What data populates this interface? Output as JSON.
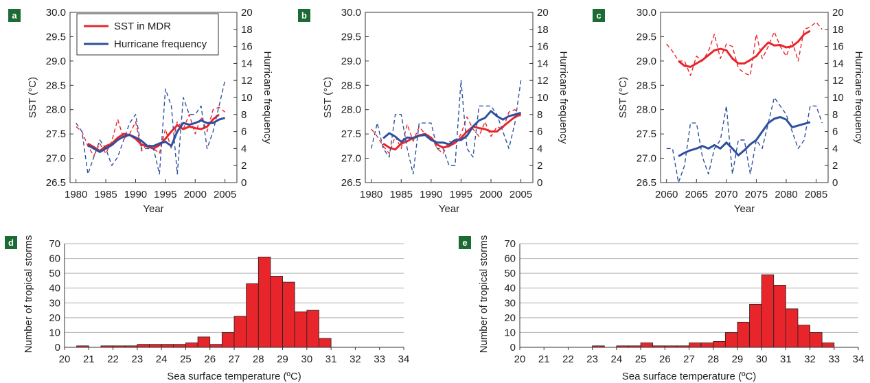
{
  "colors": {
    "sst": "#e8252b",
    "hurricane": "#2e4f9e",
    "bar": "#e8252b",
    "panel_label_bg": "#1c6b35",
    "grid": "#b0b0b0"
  },
  "legend": {
    "sst": "SST in MDR",
    "hurricane": "Hurricane frequency"
  },
  "chart_data": [
    {
      "panel": "a",
      "type": "line",
      "xlabel": "Year",
      "ylabel": "SST (°C)",
      "y2label": "Hurricane frequency",
      "xlim": [
        1979,
        2007
      ],
      "ylim": [
        26.5,
        30.0
      ],
      "y2lim": [
        0,
        20
      ],
      "xticks": [
        1980,
        1985,
        1990,
        1995,
        2000,
        2005
      ],
      "yticks": [
        "26.5",
        "27.0",
        "27.5",
        "28.0",
        "28.5",
        "29.0",
        "29.5",
        "30.0"
      ],
      "y2ticks": [
        "0",
        "2",
        "4",
        "6",
        "8",
        "10",
        "12",
        "14",
        "16",
        "18",
        "20"
      ],
      "series": [
        {
          "name": "SST in MDR",
          "style": "raw",
          "axis": "left",
          "x": [
            1980,
            1981,
            1982,
            1983,
            1984,
            1985,
            1986,
            1987,
            1988,
            1989,
            1990,
            1991,
            1992,
            1993,
            1994,
            1995,
            1996,
            1997,
            1998,
            1999,
            2000,
            2001,
            2002,
            2003,
            2004,
            2005
          ],
          "y": [
            27.65,
            27.55,
            27.25,
            27.05,
            27.3,
            27.1,
            27.35,
            27.8,
            27.4,
            27.5,
            27.75,
            27.15,
            27.3,
            27.2,
            27.1,
            27.6,
            27.2,
            27.75,
            27.6,
            27.9,
            27.5,
            27.85,
            27.55,
            28.0,
            28.05,
            27.95
          ]
        },
        {
          "name": "SST in MDR",
          "style": "smooth",
          "axis": "left",
          "x": [
            1982,
            1983,
            1984,
            1985,
            1986,
            1987,
            1988,
            1989,
            1990,
            1991,
            1992,
            1993,
            1994,
            1995,
            1996,
            1997,
            1998,
            1999,
            2000,
            2001,
            2002,
            2003,
            2004
          ],
          "y": [
            27.3,
            27.23,
            27.15,
            27.25,
            27.3,
            27.42,
            27.5,
            27.48,
            27.4,
            27.28,
            27.24,
            27.2,
            27.27,
            27.4,
            27.55,
            27.68,
            27.6,
            27.65,
            27.62,
            27.6,
            27.65,
            27.8,
            27.9
          ]
        },
        {
          "name": "Hurricane frequency",
          "style": "raw",
          "axis": "right",
          "x": [
            1980,
            1981,
            1982,
            1983,
            1984,
            1985,
            1986,
            1987,
            1988,
            1989,
            1990,
            1991,
            1992,
            1993,
            1994,
            1995,
            1996,
            1997,
            1998,
            1999,
            2000,
            2001,
            2002,
            2003,
            2004,
            2005
          ],
          "y": [
            7,
            6,
            1,
            3,
            5,
            4,
            2,
            3,
            5,
            7,
            8,
            4,
            4,
            4,
            1,
            11,
            9,
            1,
            10,
            8,
            8,
            9,
            4,
            6,
            9,
            12
          ]
        },
        {
          "name": "Hurricane frequency",
          "style": "smooth",
          "axis": "right",
          "x": [
            1982,
            1983,
            1984,
            1985,
            1986,
            1987,
            1988,
            1989,
            1990,
            1991,
            1992,
            1993,
            1994,
            1995,
            1996,
            1997,
            1998,
            1999,
            2000,
            2001,
            2002,
            2003,
            2004,
            2005
          ],
          "y": [
            4.4,
            4,
            3.6,
            4,
            4.4,
            5,
            5.4,
            5.6,
            5.3,
            4.9,
            4.3,
            4.3,
            4.6,
            4.8,
            4.3,
            6,
            7,
            6.8,
            7,
            7.3,
            7,
            7,
            7.4,
            7.6
          ]
        }
      ]
    },
    {
      "panel": "b",
      "type": "line",
      "xlabel": "Year",
      "ylabel": "SST (°C)",
      "y2label": "Hurricane frequency",
      "xlim": [
        1979,
        2007
      ],
      "ylim": [
        26.5,
        30.0
      ],
      "y2lim": [
        0,
        20
      ],
      "xticks": [
        1980,
        1985,
        1990,
        1995,
        2000,
        2005
      ],
      "yticks": [
        "26.5",
        "27.0",
        "27.5",
        "28.0",
        "28.5",
        "29.0",
        "29.5",
        "30.0"
      ],
      "y2ticks": [
        "0",
        "2",
        "4",
        "6",
        "8",
        "10",
        "12",
        "14",
        "16",
        "18",
        "20"
      ],
      "series": [
        {
          "name": "SST in MDR",
          "style": "raw",
          "axis": "left",
          "x": [
            1980,
            1981,
            1982,
            1983,
            1984,
            1985,
            1986,
            1987,
            1988,
            1989,
            1990,
            1991,
            1992,
            1993,
            1994,
            1995,
            1996,
            1997,
            1998,
            1999,
            2000,
            2001,
            2002,
            2003,
            2004,
            2005
          ],
          "y": [
            27.6,
            27.45,
            27.25,
            27.1,
            27.45,
            27.2,
            27.7,
            27.35,
            27.65,
            27.5,
            27.45,
            27.2,
            27.1,
            27.35,
            27.3,
            27.5,
            27.85,
            27.6,
            27.45,
            27.75,
            27.45,
            27.65,
            27.6,
            27.95,
            28.0,
            27.85
          ]
        },
        {
          "name": "SST in MDR",
          "style": "smooth",
          "axis": "left",
          "x": [
            1982,
            1983,
            1984,
            1985,
            1986,
            1987,
            1988,
            1989,
            1990,
            1991,
            1992,
            1993,
            1994,
            1995,
            1996,
            1997,
            1998,
            1999,
            2000,
            2001,
            2002,
            2003,
            2004,
            2005
          ],
          "y": [
            27.3,
            27.22,
            27.18,
            27.3,
            27.35,
            27.42,
            27.47,
            27.5,
            27.42,
            27.28,
            27.22,
            27.25,
            27.32,
            27.42,
            27.55,
            27.65,
            27.62,
            27.6,
            27.55,
            27.55,
            27.65,
            27.75,
            27.85,
            27.9
          ]
        },
        {
          "name": "Hurricane frequency",
          "style": "raw",
          "axis": "right",
          "x": [
            1980,
            1981,
            1982,
            1983,
            1984,
            1985,
            1986,
            1987,
            1988,
            1989,
            1990,
            1991,
            1992,
            1993,
            1994,
            1995,
            1996,
            1997,
            1998,
            1999,
            2000,
            2001,
            2002,
            2003,
            2004,
            2005
          ],
          "y": [
            4,
            7,
            4,
            3,
            8,
            8,
            4,
            1,
            7,
            7,
            7,
            4,
            4,
            2,
            2,
            12,
            4,
            3,
            9,
            9,
            9,
            8,
            6,
            4,
            7,
            12
          ]
        },
        {
          "name": "Hurricane frequency",
          "style": "smooth",
          "axis": "right",
          "x": [
            1982,
            1983,
            1984,
            1985,
            1986,
            1987,
            1988,
            1989,
            1990,
            1991,
            1992,
            1993,
            1994,
            1995,
            1996,
            1997,
            1998,
            1999,
            2000,
            2001,
            2002,
            2003,
            2004,
            2005
          ],
          "y": [
            5.2,
            5.8,
            5.4,
            4.8,
            5.3,
            5.2,
            5.5,
            5.6,
            5.0,
            4.7,
            4.7,
            4.5,
            5.0,
            5.0,
            5.5,
            6.6,
            7.3,
            7.6,
            8.4,
            7.8,
            7.4,
            7.8,
            8.0,
            8.2
          ]
        }
      ]
    },
    {
      "panel": "c",
      "type": "line",
      "xlabel": "Year",
      "ylabel": "SST (°C)",
      "y2label": "Hurricane frequency",
      "xlim": [
        2059,
        2087
      ],
      "ylim": [
        26.5,
        30.0
      ],
      "y2lim": [
        0,
        20
      ],
      "xticks": [
        2060,
        2065,
        2070,
        2075,
        2080,
        2085
      ],
      "yticks": [
        "26.5",
        "27.0",
        "27.5",
        "28.0",
        "28.5",
        "29.0",
        "29.5",
        "30.0"
      ],
      "y2ticks": [
        "0",
        "2",
        "4",
        "6",
        "8",
        "10",
        "12",
        "14",
        "16",
        "18",
        "20"
      ],
      "series": [
        {
          "name": "SST in MDR",
          "style": "raw",
          "axis": "left",
          "x": [
            2060,
            2061,
            2062,
            2063,
            2064,
            2065,
            2066,
            2067,
            2068,
            2069,
            2070,
            2071,
            2072,
            2073,
            2074,
            2075,
            2076,
            2077,
            2078,
            2079,
            2080,
            2081,
            2082,
            2083,
            2084,
            2085,
            2086
          ],
          "y": [
            29.35,
            29.2,
            29.0,
            29.0,
            28.7,
            29.1,
            29.0,
            29.2,
            29.55,
            29.05,
            29.35,
            29.3,
            28.85,
            28.75,
            28.7,
            29.55,
            29.05,
            29.3,
            29.6,
            29.3,
            29.1,
            29.4,
            29.0,
            29.65,
            29.7,
            29.8,
            29.65
          ]
        },
        {
          "name": "SST in MDR",
          "style": "smooth",
          "axis": "left",
          "x": [
            2062,
            2063,
            2064,
            2065,
            2066,
            2067,
            2068,
            2069,
            2070,
            2071,
            2072,
            2073,
            2074,
            2075,
            2076,
            2077,
            2078,
            2079,
            2080,
            2081,
            2082,
            2083,
            2084
          ],
          "y": [
            29.0,
            28.9,
            28.88,
            28.95,
            29.02,
            29.12,
            29.22,
            29.25,
            29.22,
            29.05,
            28.95,
            28.95,
            29.02,
            29.1,
            29.25,
            29.38,
            29.32,
            29.33,
            29.28,
            29.3,
            29.4,
            29.55,
            29.62
          ]
        },
        {
          "name": "Hurricane frequency",
          "style": "raw",
          "axis": "right",
          "x": [
            2060,
            2061,
            2062,
            2063,
            2064,
            2065,
            2066,
            2067,
            2068,
            2069,
            2070,
            2071,
            2072,
            2073,
            2074,
            2075,
            2076,
            2077,
            2078,
            2079,
            2080,
            2081,
            2082,
            2083,
            2084,
            2085,
            2086
          ],
          "y": [
            4,
            4,
            0,
            2,
            7,
            7,
            3,
            1,
            4,
            5,
            9,
            1,
            5,
            5,
            1,
            5,
            4,
            7,
            10,
            9,
            8,
            6,
            4,
            5,
            9,
            9,
            7
          ]
        },
        {
          "name": "Hurricane frequency",
          "style": "smooth",
          "axis": "right",
          "x": [
            2062,
            2063,
            2064,
            2065,
            2066,
            2067,
            2068,
            2069,
            2070,
            2071,
            2072,
            2073,
            2074,
            2075,
            2076,
            2077,
            2078,
            2079,
            2080,
            2081,
            2082,
            2083,
            2084
          ],
          "y": [
            3.1,
            3.5,
            3.8,
            4.0,
            4.3,
            4.0,
            4.4,
            4.0,
            4.7,
            4.0,
            3.2,
            3.8,
            4.5,
            5.0,
            6.0,
            7.0,
            7.5,
            7.7,
            7.4,
            6.5,
            6.7,
            6.9,
            7.1
          ]
        }
      ]
    },
    {
      "panel": "d",
      "type": "bar",
      "xlabel": "Sea surface temperature (ºC)",
      "ylabel": "Number of tropical storms",
      "xlim": [
        20,
        34
      ],
      "ylim": [
        0,
        70
      ],
      "xticks": [
        "20",
        "21",
        "22",
        "23",
        "24",
        "25",
        "26",
        "27",
        "28",
        "29",
        "30",
        "31",
        "32",
        "33",
        "34"
      ],
      "yticks": [
        "0",
        "10",
        "20",
        "30",
        "40",
        "50",
        "60",
        "70"
      ],
      "bin_width": 0.5,
      "bins": [
        20.5,
        21.0,
        21.5,
        22.0,
        22.5,
        23.0,
        23.5,
        24.0,
        24.5,
        25.0,
        25.5,
        26.0,
        26.5,
        27.0,
        27.5,
        28.0,
        28.5,
        29.0,
        29.5,
        30.0
      ],
      "values": [
        1,
        0,
        1,
        1,
        1,
        2,
        2,
        2,
        2,
        3,
        7,
        2,
        10,
        21,
        43,
        61,
        48,
        44,
        24,
        25
      ]
    },
    {
      "panel": "e",
      "type": "bar",
      "xlabel": "Sea surface temperature (ºC)",
      "ylabel": "Number of tropical storms",
      "xlim": [
        20,
        34
      ],
      "ylim": [
        0,
        70
      ],
      "xticks": [
        "20",
        "21",
        "22",
        "23",
        "24",
        "25",
        "26",
        "27",
        "28",
        "29",
        "30",
        "31",
        "32",
        "33",
        "34"
      ],
      "yticks": [
        "0",
        "10",
        "20",
        "30",
        "40",
        "50",
        "60",
        "70"
      ],
      "bin_width": 0.5,
      "bins": [
        23.0,
        23.5,
        24.0,
        24.5,
        25.0,
        25.5,
        26.0,
        26.5,
        27.0,
        27.5,
        28.0,
        28.5,
        29.0,
        29.5,
        30.0,
        30.5,
        31.0,
        31.5,
        32.0
      ],
      "values": [
        1,
        0,
        1,
        1,
        3,
        1,
        1,
        1,
        3,
        3,
        4,
        10,
        17,
        29,
        49,
        42,
        26,
        15,
        10
      ]
    }
  ],
  "extra_bars": {
    "d": {
      "bin": 30.0,
      "next": 6
    },
    "e": {
      "bin": 32.0,
      "next": 3
    }
  }
}
